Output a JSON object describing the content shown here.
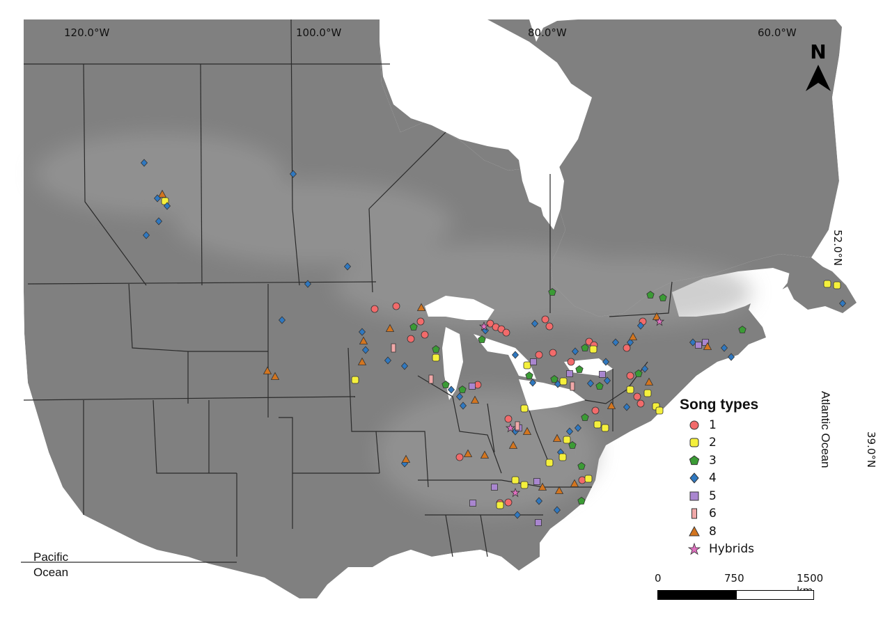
{
  "map": {
    "lon_labels": [
      "120.0°W",
      "100.0°W",
      "80.0°W",
      "60.0°W"
    ],
    "lat_labels": [
      "52.0°N",
      "39.0°N"
    ],
    "ocean_labels": {
      "pacific": "Pacific\nOcean",
      "atlantic": "Atlantic Ocean"
    },
    "north_arrow": "N",
    "colors": {
      "land": "#808080",
      "water": "#ffffff",
      "border": "#2a2a2a",
      "boreal_haze": "#8f8f8f"
    }
  },
  "legend": {
    "title": "Song types",
    "items": [
      {
        "label": "1",
        "shape": "circle",
        "color": "#f26b6b"
      },
      {
        "label": "2",
        "shape": "rounded-square",
        "color": "#f5f03c"
      },
      {
        "label": "3",
        "shape": "pentagon",
        "color": "#3b9b35"
      },
      {
        "label": "4",
        "shape": "diamond",
        "color": "#2f78c0"
      },
      {
        "label": "5",
        "shape": "square",
        "color": "#a986cf"
      },
      {
        "label": "6",
        "shape": "rectangle",
        "color": "#f0a8a8"
      },
      {
        "label": "8",
        "shape": "triangle",
        "color": "#d3751f"
      },
      {
        "label": "Hybrids",
        "shape": "star",
        "color": "#e070c0"
      }
    ]
  },
  "scale_bar": {
    "ticks": [
      "0",
      "750",
      "1500 km"
    ]
  }
}
